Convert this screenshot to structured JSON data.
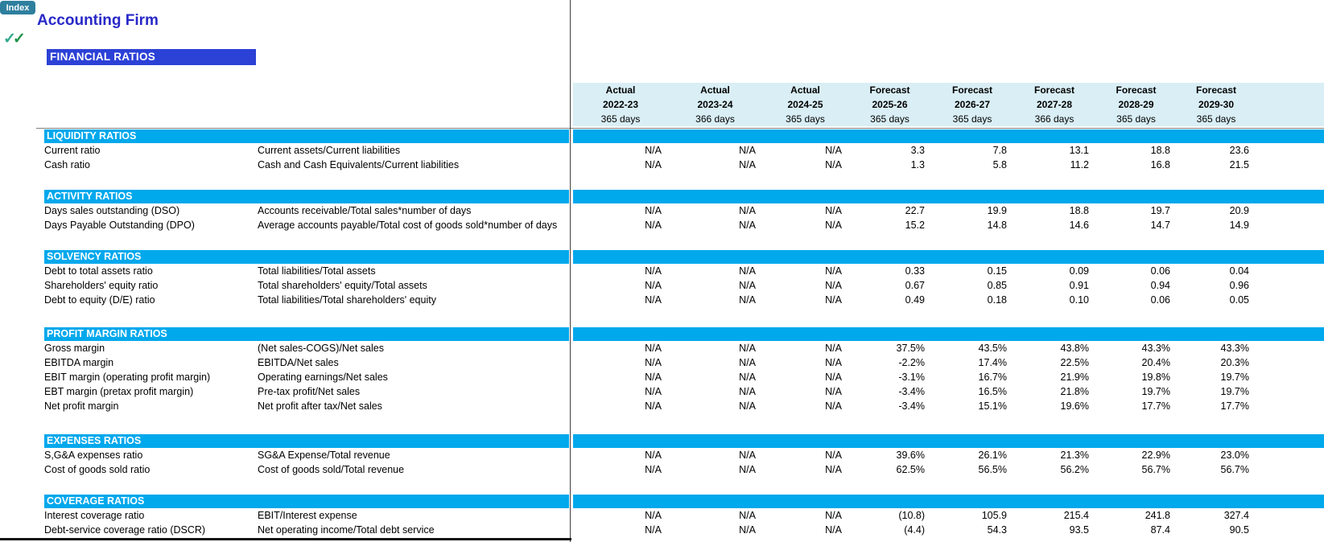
{
  "index_button": {
    "label": "Index"
  },
  "header": {
    "company": "Accounting Firm",
    "section_title": "FINANCIAL RATIOS",
    "check1": "✓",
    "check2": "✓"
  },
  "colors": {
    "section_bar": "#00A8EC",
    "column_header_bg": "#D9EEF5",
    "banner_bg": "#2C41D6",
    "company_title": "#2828C8",
    "index_button_bg": "#2E7F9E",
    "check_green_light": "#2EA98C",
    "check_green_dark": "#1D9147"
  },
  "columns": [
    {
      "type": "Actual",
      "period": "2022-23",
      "days": "365 days"
    },
    {
      "type": "Actual",
      "period": "2023-24",
      "days": "366 days"
    },
    {
      "type": "Actual",
      "period": "2024-25",
      "days": "365 days"
    },
    {
      "type": "Forecast",
      "period": "2025-26",
      "days": "365 days"
    },
    {
      "type": "Forecast",
      "period": "2026-27",
      "days": "365 days"
    },
    {
      "type": "Forecast",
      "period": "2027-28",
      "days": "366 days"
    },
    {
      "type": "Forecast",
      "period": "2028-29",
      "days": "365 days"
    },
    {
      "type": "Forecast",
      "period": "2029-30",
      "days": "365 days"
    }
  ],
  "sections": [
    {
      "title": "LIQUIDITY RATIOS",
      "rows": [
        {
          "label": "Current ratio",
          "formula": "Current assets/Current liabilities",
          "values": [
            "N/A",
            "N/A",
            "N/A",
            "3.3",
            "7.8",
            "13.1",
            "18.8",
            "23.6"
          ]
        },
        {
          "label": "Cash ratio",
          "formula": "Cash and Cash Equivalents/Current liabilities",
          "values": [
            "N/A",
            "N/A",
            "N/A",
            "1.3",
            "5.8",
            "11.2",
            "16.8",
            "21.5"
          ]
        }
      ]
    },
    {
      "title": "ACTIVITY RATIOS",
      "rows": [
        {
          "label": "Days sales outstanding (DSO)",
          "formula": "Accounts receivable/Total sales*number of days",
          "values": [
            "N/A",
            "N/A",
            "N/A",
            "22.7",
            "19.9",
            "18.8",
            "19.7",
            "20.9"
          ]
        },
        {
          "label": "Days Payable Outstanding (DPO)",
          "formula": "Average accounts payable/Total cost of goods sold*number of days",
          "values": [
            "N/A",
            "N/A",
            "N/A",
            "15.2",
            "14.8",
            "14.6",
            "14.7",
            "14.9"
          ]
        }
      ]
    },
    {
      "title": "SOLVENCY RATIOS",
      "rows": [
        {
          "label": "Debt to total assets ratio",
          "formula": "Total liabilities/Total assets",
          "values": [
            "N/A",
            "N/A",
            "N/A",
            "0.33",
            "0.15",
            "0.09",
            "0.06",
            "0.04"
          ]
        },
        {
          "label": "Shareholders' equity ratio",
          "formula": "Total shareholders' equity/Total assets",
          "values": [
            "N/A",
            "N/A",
            "N/A",
            "0.67",
            "0.85",
            "0.91",
            "0.94",
            "0.96"
          ]
        },
        {
          "label": "Debt to equity (D/E) ratio",
          "formula": "Total liabilities/Total shareholders' equity",
          "values": [
            "N/A",
            "N/A",
            "N/A",
            "0.49",
            "0.18",
            "0.10",
            "0.06",
            "0.05"
          ]
        }
      ]
    },
    {
      "title": "PROFIT MARGIN RATIOS",
      "rows": [
        {
          "label": "Gross margin",
          "formula": "(Net sales-COGS)/Net sales",
          "values": [
            "N/A",
            "N/A",
            "N/A",
            "37.5%",
            "43.5%",
            "43.8%",
            "43.3%",
            "43.3%"
          ]
        },
        {
          "label": "EBITDA margin",
          "formula": "EBITDA/Net sales",
          "values": [
            "N/A",
            "N/A",
            "N/A",
            "-2.2%",
            "17.4%",
            "22.5%",
            "20.4%",
            "20.3%"
          ]
        },
        {
          "label": "EBIT margin (operating profit margin)",
          "formula": "Operating earnings/Net sales",
          "values": [
            "N/A",
            "N/A",
            "N/A",
            "-3.1%",
            "16.7%",
            "21.9%",
            "19.8%",
            "19.7%"
          ]
        },
        {
          "label": "EBT margin (pretax profit margin)",
          "formula": "Pre-tax profit/Net sales",
          "values": [
            "N/A",
            "N/A",
            "N/A",
            "-3.4%",
            "16.5%",
            "21.8%",
            "19.7%",
            "19.7%"
          ]
        },
        {
          "label": "Net profit margin",
          "formula": "Net profit after tax/Net sales",
          "values": [
            "N/A",
            "N/A",
            "N/A",
            "-3.4%",
            "15.1%",
            "19.6%",
            "17.7%",
            "17.7%"
          ]
        }
      ]
    },
    {
      "title": "EXPENSES RATIOS",
      "rows": [
        {
          "label": "S,G&A expenses ratio",
          "formula": "SG&A Expense/Total revenue",
          "values": [
            "N/A",
            "N/A",
            "N/A",
            "39.6%",
            "26.1%",
            "21.3%",
            "22.9%",
            "23.0%"
          ]
        },
        {
          "label": "Cost of goods sold ratio",
          "formula": "Cost of goods sold/Total revenue",
          "values": [
            "N/A",
            "N/A",
            "N/A",
            "62.5%",
            "56.5%",
            "56.2%",
            "56.7%",
            "56.7%"
          ]
        }
      ]
    },
    {
      "title": "COVERAGE RATIOS",
      "rows": [
        {
          "label": "Interest coverage ratio",
          "formula": "EBIT/Interest expense",
          "values": [
            "N/A",
            "N/A",
            "N/A",
            "(10.8)",
            "105.9",
            "215.4",
            "241.8",
            "327.4"
          ]
        },
        {
          "label": "Debt-service coverage ratio (DSCR)",
          "formula": "Net operating income/Total debt service",
          "values": [
            "N/A",
            "N/A",
            "N/A",
            "(4.4)",
            "54.3",
            "93.5",
            "87.4",
            "90.5"
          ]
        }
      ]
    }
  ]
}
